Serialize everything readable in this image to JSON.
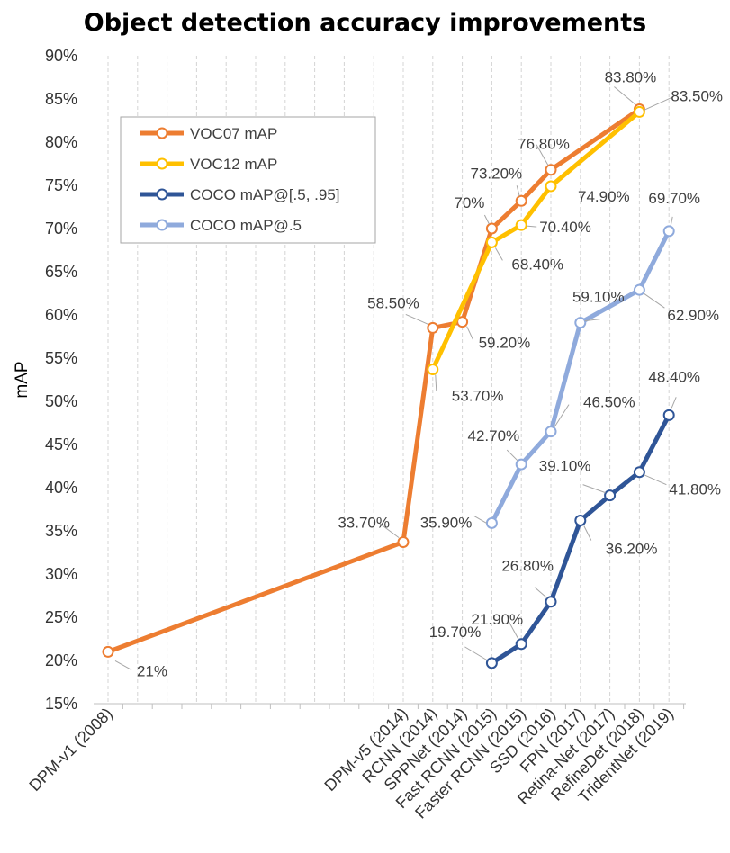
{
  "chart_data": {
    "type": "line",
    "title": "Object detection accuracy improvements",
    "xlabel": "",
    "ylabel": "mAP",
    "ylim": [
      15,
      90
    ],
    "y_ticks": [
      "15%",
      "20%",
      "25%",
      "30%",
      "35%",
      "40%",
      "45%",
      "50%",
      "55%",
      "60%",
      "65%",
      "70%",
      "75%",
      "80%",
      "85%",
      "90%"
    ],
    "grid": "vertical dashed",
    "legend_position": "top-left",
    "categories": [
      "DPM-v1 (2008)",
      "",
      "",
      "",
      "",
      "",
      "",
      "",
      "",
      "",
      "DPM-v5 (2014)",
      "RCNN (2014)",
      "SPPNet (2014)",
      "Fast RCNN (2015)",
      "Faster RCNN (2015)",
      "SSD (2016)",
      "FPN (2017)",
      "Retina-Net (2017)",
      "RefineDet (2018)",
      "TridentNet (2019)"
    ],
    "series": [
      {
        "name": "VOC07 mAP",
        "color": "#ED7D31",
        "values": [
          21,
          null,
          null,
          null,
          null,
          null,
          null,
          null,
          null,
          null,
          33.7,
          58.5,
          59.2,
          70,
          73.2,
          76.8,
          null,
          null,
          83.8,
          null
        ],
        "labels": [
          "21%",
          null,
          null,
          null,
          null,
          null,
          null,
          null,
          null,
          null,
          "33.70%",
          "58.50%",
          "59.20%",
          "70%",
          "73.20%",
          "76.80%",
          null,
          null,
          "83.80%",
          null
        ]
      },
      {
        "name": "VOC12 mAP",
        "color": "#FFC000",
        "values": [
          null,
          null,
          null,
          null,
          null,
          null,
          null,
          null,
          null,
          null,
          null,
          53.7,
          null,
          68.4,
          70.4,
          74.9,
          null,
          null,
          83.5,
          null
        ],
        "labels": [
          null,
          null,
          null,
          null,
          null,
          null,
          null,
          null,
          null,
          null,
          null,
          "53.70%",
          null,
          "68.40%",
          "70.40%",
          "74.90%",
          null,
          null,
          "83.50%",
          null
        ]
      },
      {
        "name": "COCO mAP@[.5, .95]",
        "color": "#2F5597",
        "values": [
          null,
          null,
          null,
          null,
          null,
          null,
          null,
          null,
          null,
          null,
          null,
          null,
          null,
          19.7,
          21.9,
          26.8,
          36.2,
          39.1,
          41.8,
          48.4
        ],
        "labels": [
          null,
          null,
          null,
          null,
          null,
          null,
          null,
          null,
          null,
          null,
          null,
          null,
          null,
          "19.70%",
          "21.90%",
          "26.80%",
          "36.20%",
          "39.10%",
          "41.80%",
          "48.40%"
        ]
      },
      {
        "name": "COCO mAP@.5",
        "color": "#8FAADC",
        "values": [
          null,
          null,
          null,
          null,
          null,
          null,
          null,
          null,
          null,
          null,
          null,
          null,
          null,
          35.9,
          42.7,
          46.5,
          59.1,
          null,
          62.9,
          69.7
        ],
        "labels": [
          null,
          null,
          null,
          null,
          null,
          null,
          null,
          null,
          null,
          null,
          null,
          null,
          null,
          "35.90%",
          "42.70%",
          "46.50%",
          "59.10%",
          null,
          "62.90%",
          "69.70%"
        ]
      }
    ]
  }
}
